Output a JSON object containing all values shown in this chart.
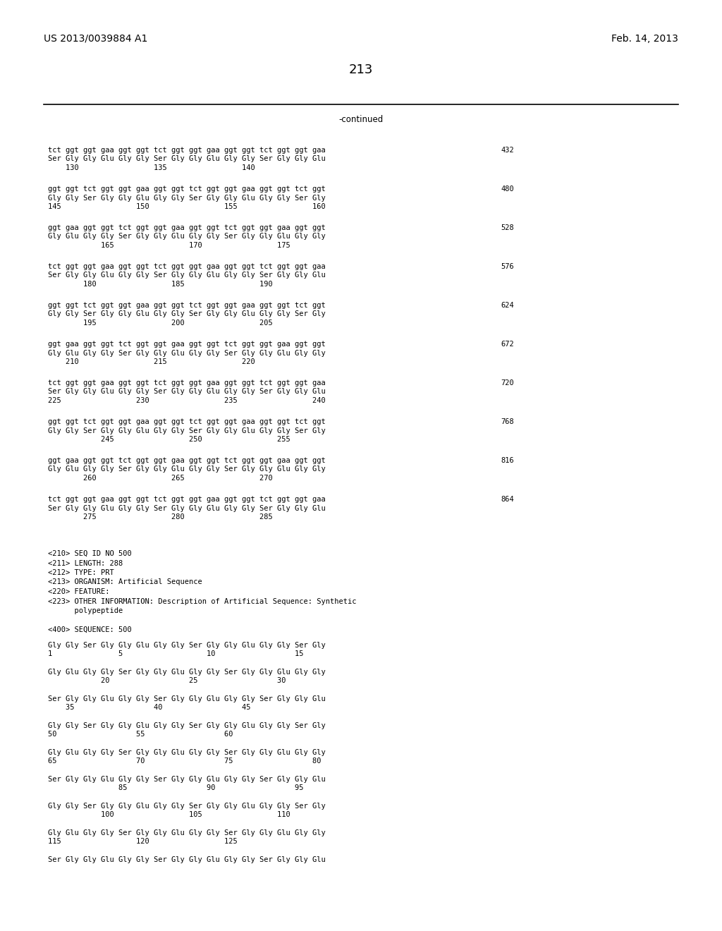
{
  "header_left": "US 2013/0039884 A1",
  "header_right": "Feb. 14, 2013",
  "page_number": "213",
  "continued": "-continued",
  "bg_color": "#ffffff",
  "mono_fs": 7.5,
  "header_fs": 10.0,
  "page_fs": 13.0,
  "dna_blocks": [
    {
      "line1": "tct ggt ggt gaa ggt ggt tct ggt ggt gaa ggt ggt tct ggt ggt gaa",
      "line2": "Ser Gly Gly Glu Gly Gly Ser Gly Gly Glu Gly Gly Ser Gly Gly Glu",
      "line3": "    130                 135                 140",
      "num": "432"
    },
    {
      "line1": "ggt ggt tct ggt ggt gaa ggt ggt tct ggt ggt gaa ggt ggt tct ggt",
      "line2": "Gly Gly Ser Gly Gly Glu Gly Gly Ser Gly Gly Glu Gly Gly Ser Gly",
      "line3": "145                 150                 155                 160",
      "num": "480"
    },
    {
      "line1": "ggt gaa ggt ggt tct ggt ggt gaa ggt ggt tct ggt ggt gaa ggt ggt",
      "line2": "Gly Glu Gly Gly Ser Gly Gly Glu Gly Gly Ser Gly Gly Glu Gly Gly",
      "line3": "            165                 170                 175",
      "num": "528"
    },
    {
      "line1": "tct ggt ggt gaa ggt ggt tct ggt ggt gaa ggt ggt tct ggt ggt gaa",
      "line2": "Ser Gly Gly Glu Gly Gly Ser Gly Gly Glu Gly Gly Ser Gly Gly Glu",
      "line3": "        180                 185                 190",
      "num": "576"
    },
    {
      "line1": "ggt ggt tct ggt ggt gaa ggt ggt tct ggt ggt gaa ggt ggt tct ggt",
      "line2": "Gly Gly Ser Gly Gly Glu Gly Gly Ser Gly Gly Glu Gly Gly Ser Gly",
      "line3": "        195                 200                 205",
      "num": "624"
    },
    {
      "line1": "ggt gaa ggt ggt tct ggt ggt gaa ggt ggt tct ggt ggt gaa ggt ggt",
      "line2": "Gly Glu Gly Gly Ser Gly Gly Glu Gly Gly Ser Gly Gly Glu Gly Gly",
      "line3": "    210                 215                 220",
      "num": "672"
    },
    {
      "line1": "tct ggt ggt gaa ggt ggt tct ggt ggt gaa ggt ggt tct ggt ggt gaa",
      "line2": "Ser Gly Gly Glu Gly Gly Ser Gly Gly Glu Gly Gly Ser Gly Gly Glu",
      "line3": "225                 230                 235                 240",
      "num": "720"
    },
    {
      "line1": "ggt ggt tct ggt ggt gaa ggt ggt tct ggt ggt gaa ggt ggt tct ggt",
      "line2": "Gly Gly Ser Gly Gly Glu Gly Gly Ser Gly Gly Glu Gly Gly Ser Gly",
      "line3": "            245                 250                 255",
      "num": "768"
    },
    {
      "line1": "ggt gaa ggt ggt tct ggt ggt gaa ggt ggt tct ggt ggt gaa ggt ggt",
      "line2": "Gly Glu Gly Gly Ser Gly Gly Glu Gly Gly Ser Gly Gly Glu Gly Gly",
      "line3": "        260                 265                 270",
      "num": "816"
    },
    {
      "line1": "tct ggt ggt gaa ggt ggt tct ggt ggt gaa ggt ggt tct ggt ggt gaa",
      "line2": "Ser Gly Gly Glu Gly Gly Ser Gly Gly Glu Gly Gly Ser Gly Gly Glu",
      "line3": "        275                 280                 285",
      "num": "864"
    }
  ],
  "seq_meta": [
    "<210> SEQ ID NO 500",
    "<211> LENGTH: 288",
    "<212> TYPE: PRT",
    "<213> ORGANISM: Artificial Sequence",
    "<220> FEATURE:",
    "<223> OTHER INFORMATION: Description of Artificial Sequence: Synthetic",
    "      polypeptide",
    "",
    "<400> SEQUENCE: 500"
  ],
  "prot_blocks": [
    {
      "line1": "Gly Gly Ser Gly Gly Glu Gly Gly Ser Gly Gly Glu Gly Gly Ser Gly",
      "line2": "1               5                   10                  15"
    },
    {
      "line1": "Gly Glu Gly Gly Ser Gly Gly Glu Gly Gly Ser Gly Gly Glu Gly Gly",
      "line2": "            20                  25                  30"
    },
    {
      "line1": "Ser Gly Gly Glu Gly Gly Ser Gly Gly Glu Gly Gly Ser Gly Gly Glu",
      "line2": "    35                  40                  45"
    },
    {
      "line1": "Gly Gly Ser Gly Gly Glu Gly Gly Ser Gly Gly Glu Gly Gly Ser Gly",
      "line2": "50                  55                  60"
    },
    {
      "line1": "Gly Glu Gly Gly Ser Gly Gly Glu Gly Gly Ser Gly Gly Glu Gly Gly",
      "line2": "65                  70                  75                  80"
    },
    {
      "line1": "Ser Gly Gly Glu Gly Gly Ser Gly Gly Glu Gly Gly Ser Gly Gly Glu",
      "line2": "                85                  90                  95"
    },
    {
      "line1": "Gly Gly Ser Gly Gly Glu Gly Gly Ser Gly Gly Glu Gly Gly Ser Gly",
      "line2": "            100                 105                 110"
    },
    {
      "line1": "Gly Glu Gly Gly Ser Gly Gly Glu Gly Gly Ser Gly Gly Glu Gly Gly",
      "line2": "115                 120                 125"
    },
    {
      "line1": "Ser Gly Gly Glu Gly Gly Ser Gly Gly Glu Gly Gly Ser Gly Gly Glu",
      "line2": ""
    }
  ]
}
